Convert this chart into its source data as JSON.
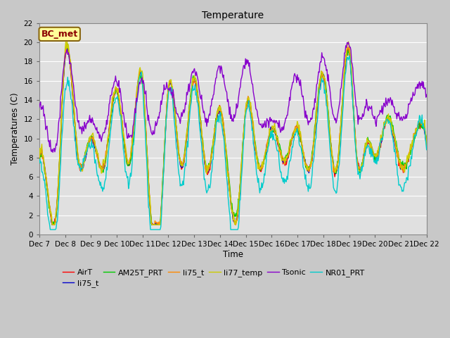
{
  "title": "Temperature",
  "xlabel": "Time",
  "ylabel": "Temperatures (C)",
  "ylim": [
    0,
    22
  ],
  "yticks": [
    0,
    2,
    4,
    6,
    8,
    10,
    12,
    14,
    16,
    18,
    20,
    22
  ],
  "xtick_labels": [
    "Dec 7",
    "Dec 8",
    "Dec 9",
    "Dec 10",
    "Dec 11",
    "Dec 12",
    "Dec 13",
    "Dec 14",
    "Dec 15",
    "Dec 16",
    "Dec 17",
    "Dec 18",
    "Dec 19",
    "Dec 20",
    "Dec 21",
    "Dec 22"
  ],
  "annotation_text": "BC_met",
  "annotation_color": "#8B0000",
  "annotation_bg": "#FFFF99",
  "annotation_border": "#8B6914",
  "series_colors": {
    "AirT": "#FF0000",
    "li75_t_blue": "#0000CC",
    "AM25T_PRT": "#00CC00",
    "li75_t_orange": "#FF8800",
    "li77_temp": "#CCCC00",
    "Tsonic": "#8800CC",
    "NR01_PRT": "#00CCCC"
  },
  "fig_bg": "#C8C8C8",
  "plot_bg": "#E0E0E0",
  "grid_color": "#FFFFFF",
  "figsize": [
    6.4,
    4.8
  ],
  "dpi": 100
}
